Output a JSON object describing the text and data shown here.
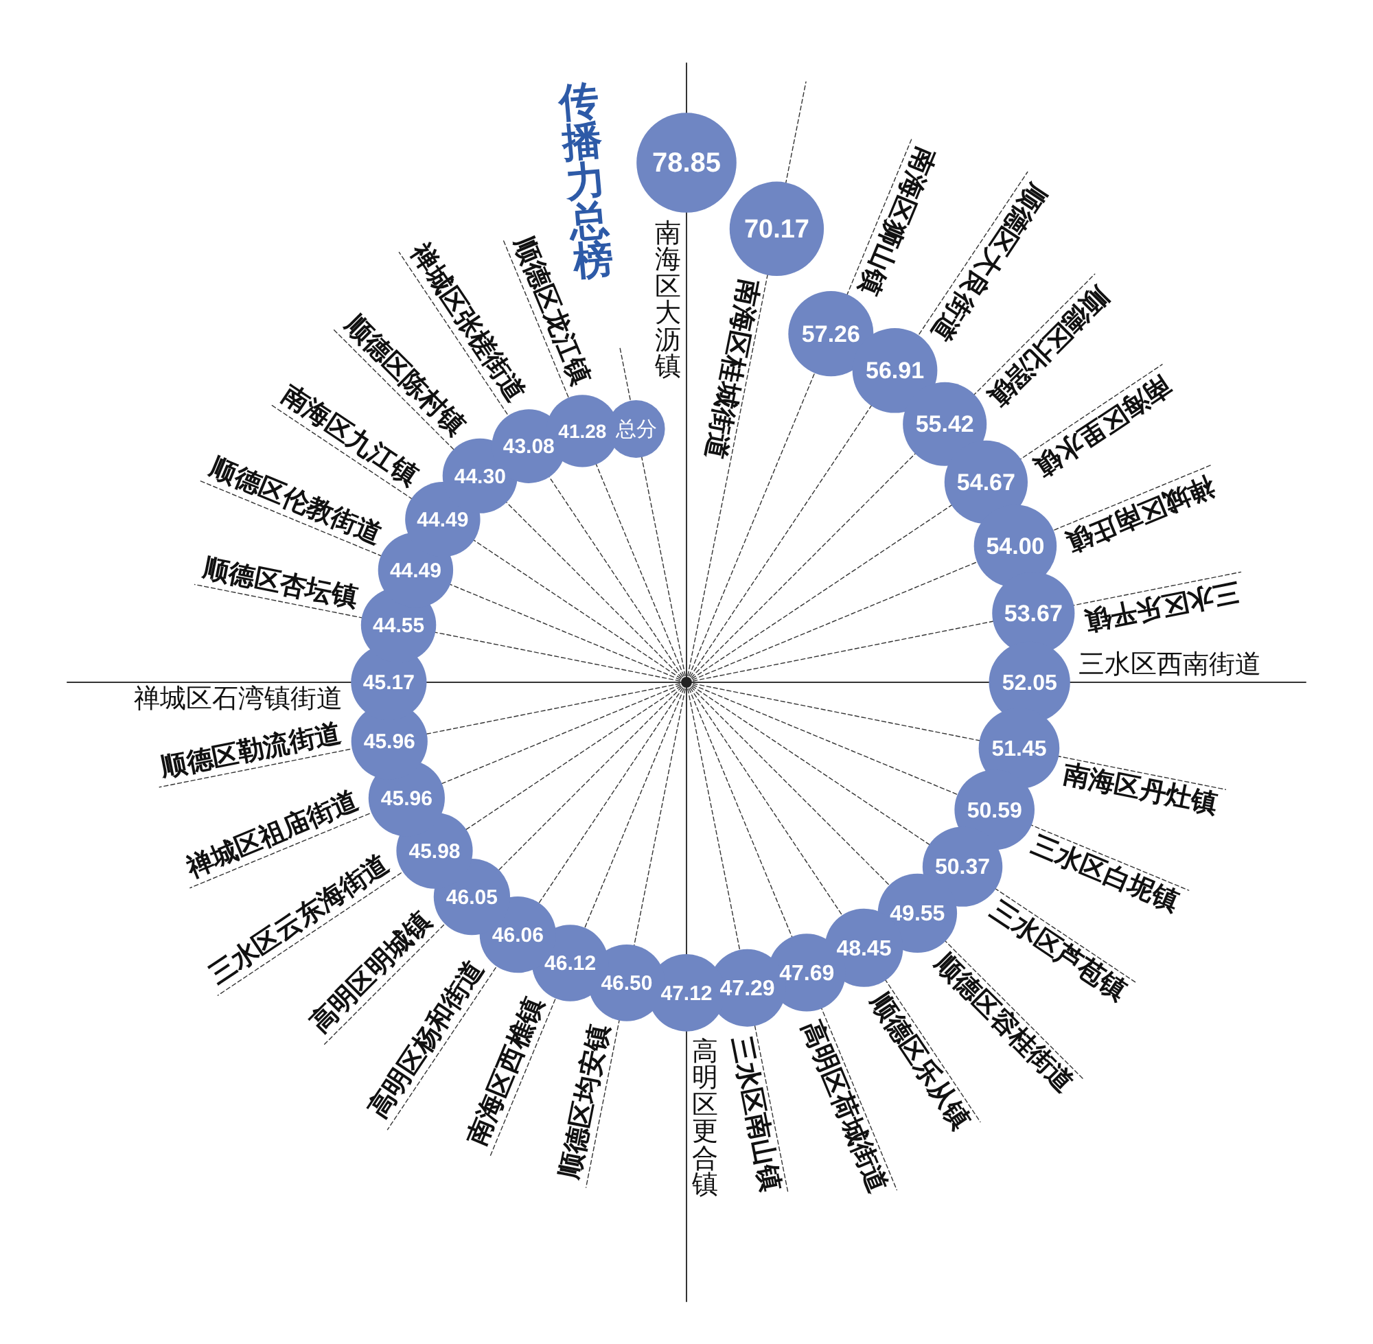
{
  "chart_data": {
    "type": "other",
    "title": "传播力总榜",
    "ylabel": "总分",
    "categories": [
      "南海区大沥镇",
      "南海区桂城街道",
      "南海区狮山镇",
      "顺德区大良街道",
      "顺德区北滘镇",
      "南海区里水镇",
      "禅城区南庄镇",
      "三水区乐平镇",
      "三水区西南街道",
      "南海区丹灶镇",
      "三水区白坭镇",
      "三水区芦苞镇",
      "顺德区容桂街道",
      "顺德区乐从镇",
      "高明区荷城街道",
      "三水区南山镇",
      "高明区更合镇",
      "顺德区均安镇",
      "南海区西樵镇",
      "高明区杨和街道",
      "高明区明城镇",
      "三水区云东海街道",
      "禅城区祖庙街道",
      "顺德区勒流街道",
      "禅城区石湾镇街道",
      "顺德区杏坛镇",
      "顺德区伦教街道",
      "南海区九江镇",
      "顺德区陈村镇",
      "禅城区张槎街道",
      "顺德区龙江镇"
    ],
    "values": [
      78.85,
      70.17,
      57.26,
      56.91,
      55.42,
      54.67,
      54.0,
      53.67,
      52.05,
      51.45,
      50.59,
      50.37,
      49.55,
      48.45,
      47.69,
      47.29,
      47.12,
      46.5,
      46.12,
      46.06,
      46.05,
      45.98,
      45.96,
      45.96,
      45.17,
      44.55,
      44.49,
      44.49,
      44.3,
      43.08,
      41.28
    ],
    "value_labels": [
      "78.85",
      "70.17",
      "57.26",
      "56.91",
      "55.42",
      "54.67",
      "54.00",
      "53.67",
      "52.05",
      "51.45",
      "50.59",
      "50.37",
      "49.55",
      "48.45",
      "47.69",
      "47.29",
      "47.12",
      "46.50",
      "46.12",
      "46.06",
      "46.05",
      "45.98",
      "45.96",
      "45.96",
      "45.17",
      "44.55",
      "44.49",
      "44.49",
      "44.30",
      "43.08",
      "41.28"
    ],
    "color": "#6f86c3"
  }
}
